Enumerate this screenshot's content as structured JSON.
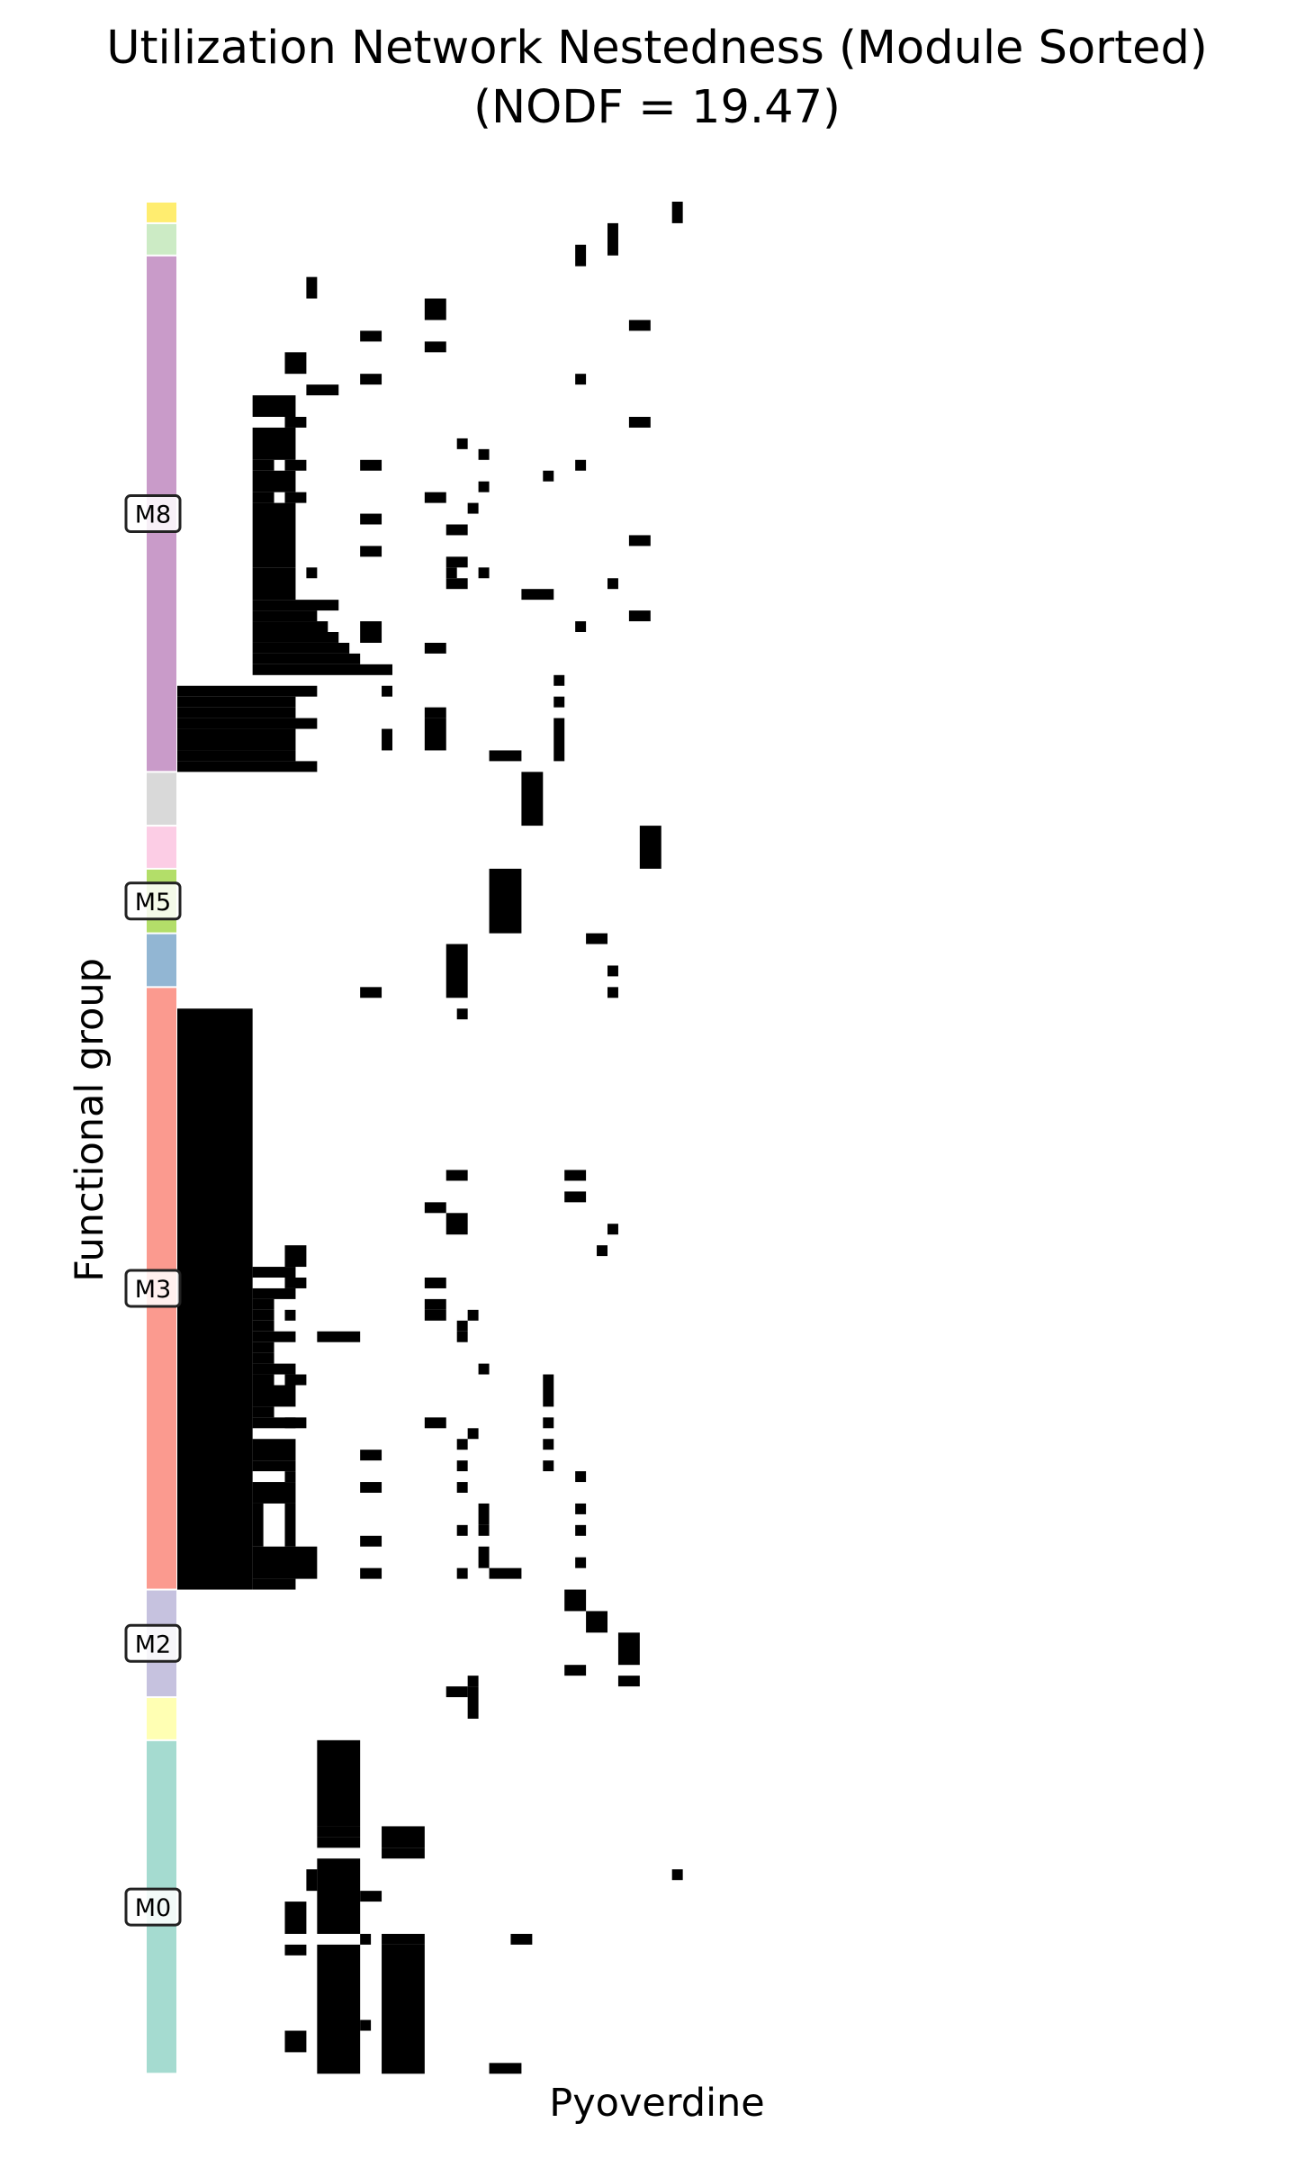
{
  "chart_data": {
    "type": "heatmap",
    "title": "Utilization Network Nestedness (Module Sorted)",
    "subtitle": "(NODF = 19.47)",
    "xlabel": "Pyoverdine",
    "ylabel": "Functional group",
    "grid": false,
    "matrix_units": {
      "columns": 47,
      "rows": 174
    },
    "module_bands": [
      {
        "module": "",
        "start": 0,
        "end": 2,
        "color": "#ffed6f"
      },
      {
        "module": "",
        "start": 2,
        "end": 5,
        "color": "#ccebc5"
      },
      {
        "module": "M8",
        "start": 5,
        "end": 53,
        "color": "#c99bc9"
      },
      {
        "module": "",
        "start": 53,
        "end": 58,
        "color": "#d9d9d9"
      },
      {
        "module": "",
        "start": 58,
        "end": 62,
        "color": "#fccde5"
      },
      {
        "module": "M5",
        "start": 62,
        "end": 68,
        "color": "#b3de69"
      },
      {
        "module": "",
        "start": 68,
        "end": 73,
        "color": "#92b6d3"
      },
      {
        "module": "M3",
        "start": 73,
        "end": 129,
        "color": "#fb9a8f"
      },
      {
        "module": "M2",
        "start": 129,
        "end": 139,
        "color": "#c6c2df"
      },
      {
        "module": "",
        "start": 139,
        "end": 143,
        "color": "#ffffb3"
      },
      {
        "module": "M0",
        "start": 143,
        "end": 174,
        "color": "#a5dbd0"
      }
    ],
    "cells": [
      [
        46,
        0,
        1,
        2
      ],
      [
        40,
        2,
        1,
        3
      ],
      [
        37,
        4,
        1,
        2
      ],
      [
        12,
        7,
        1,
        2
      ],
      [
        23,
        9,
        2,
        2
      ],
      [
        17,
        12,
        2,
        1
      ],
      [
        42,
        11,
        2,
        1
      ],
      [
        23,
        13,
        2,
        1
      ],
      [
        10,
        14,
        2,
        2
      ],
      [
        12,
        17,
        3,
        1
      ],
      [
        17,
        16,
        2,
        1
      ],
      [
        37,
        16,
        1,
        1
      ],
      [
        7,
        18,
        4,
        2
      ],
      [
        10,
        20,
        2,
        1
      ],
      [
        42,
        20,
        2,
        1
      ],
      [
        7,
        21,
        4,
        3
      ],
      [
        26,
        22,
        1,
        1
      ],
      [
        28,
        23,
        1,
        1
      ],
      [
        7,
        24,
        2,
        1
      ],
      [
        10,
        24,
        2,
        1
      ],
      [
        17,
        24,
        2,
        1
      ],
      [
        37,
        24,
        1,
        1
      ],
      [
        7,
        25,
        4,
        2
      ],
      [
        34,
        25,
        1,
        1
      ],
      [
        28,
        26,
        1,
        1
      ],
      [
        7,
        27,
        2,
        1
      ],
      [
        10,
        27,
        2,
        1
      ],
      [
        23,
        27,
        2,
        1
      ],
      [
        27,
        28,
        1,
        1
      ],
      [
        7,
        28,
        4,
        6
      ],
      [
        17,
        29,
        2,
        1
      ],
      [
        25,
        30,
        2,
        1
      ],
      [
        42,
        31,
        2,
        1
      ],
      [
        17,
        32,
        2,
        1
      ],
      [
        25,
        33,
        2,
        1
      ],
      [
        7,
        34,
        4,
        3
      ],
      [
        12,
        34,
        1,
        1
      ],
      [
        25,
        34,
        1,
        1
      ],
      [
        28,
        34,
        1,
        1
      ],
      [
        25,
        35,
        2,
        1
      ],
      [
        40,
        35,
        1,
        1
      ],
      [
        32,
        36,
        3,
        1
      ],
      [
        7,
        37,
        8,
        1
      ],
      [
        42,
        38,
        2,
        1
      ],
      [
        7,
        38,
        6,
        1
      ],
      [
        17,
        39,
        2,
        2
      ],
      [
        37,
        39,
        1,
        1
      ],
      [
        7,
        39,
        7,
        1
      ],
      [
        7,
        40,
        8,
        1
      ],
      [
        7,
        41,
        9,
        1
      ],
      [
        23,
        41,
        2,
        1
      ],
      [
        7,
        42,
        10,
        1
      ],
      [
        7,
        43,
        13,
        1
      ],
      [
        35,
        44,
        1,
        1
      ],
      [
        0,
        45,
        13,
        1
      ],
      [
        19,
        45,
        1,
        1
      ],
      [
        0,
        46,
        11,
        1
      ],
      [
        0,
        47,
        11,
        1
      ],
      [
        35,
        46,
        1,
        1
      ],
      [
        23,
        47,
        2,
        1
      ],
      [
        0,
        48,
        13,
        1
      ],
      [
        23,
        48,
        2,
        3
      ],
      [
        35,
        48,
        1,
        2
      ],
      [
        0,
        49,
        11,
        1
      ],
      [
        19,
        49,
        1,
        1
      ],
      [
        0,
        50,
        11,
        1
      ],
      [
        0,
        51,
        11,
        1
      ],
      [
        19,
        50,
        1,
        1
      ],
      [
        29,
        51,
        3,
        1
      ],
      [
        35,
        50,
        1,
        2
      ],
      [
        0,
        52,
        13,
        1
      ],
      [
        32,
        53,
        2,
        5
      ],
      [
        43,
        58,
        2,
        4
      ],
      [
        29,
        62,
        3,
        6
      ],
      [
        38,
        68,
        2,
        1
      ],
      [
        25,
        69,
        2,
        5
      ],
      [
        40,
        71,
        1,
        1
      ],
      [
        17,
        73,
        2,
        1
      ],
      [
        40,
        73,
        1,
        1
      ],
      [
        26,
        75,
        1,
        1
      ],
      [
        0,
        75,
        7,
        54
      ],
      [
        25,
        90,
        2,
        1
      ],
      [
        36,
        90,
        2,
        1
      ],
      [
        36,
        92,
        2,
        1
      ],
      [
        23,
        93,
        2,
        1
      ],
      [
        25,
        94,
        2,
        2
      ],
      [
        40,
        95,
        1,
        1
      ],
      [
        39,
        97,
        1,
        1
      ],
      [
        10,
        97,
        2,
        2
      ],
      [
        7,
        99,
        4,
        1
      ],
      [
        10,
        100,
        2,
        1
      ],
      [
        23,
        100,
        2,
        1
      ],
      [
        7,
        101,
        4,
        1
      ],
      [
        7,
        102,
        2,
        1
      ],
      [
        7,
        103,
        2,
        1
      ],
      [
        10,
        103,
        1,
        1
      ],
      [
        23,
        102,
        2,
        1
      ],
      [
        23,
        103,
        2,
        1
      ],
      [
        27,
        103,
        1,
        1
      ],
      [
        26,
        104,
        1,
        1
      ],
      [
        7,
        104,
        2,
        1
      ],
      [
        13,
        105,
        4,
        1
      ],
      [
        7,
        105,
        4,
        1
      ],
      [
        26,
        105,
        1,
        1
      ],
      [
        7,
        106,
        2,
        1
      ],
      [
        7,
        107,
        2,
        1
      ],
      [
        7,
        108,
        4,
        1
      ],
      [
        7,
        109,
        2,
        1
      ],
      [
        10,
        109,
        2,
        1
      ],
      [
        28,
        108,
        1,
        1
      ],
      [
        34,
        109,
        1,
        3
      ],
      [
        7,
        110,
        4,
        2
      ],
      [
        7,
        112,
        2,
        1
      ],
      [
        7,
        113,
        4,
        1
      ],
      [
        10,
        113,
        2,
        1
      ],
      [
        23,
        113,
        2,
        1
      ],
      [
        34,
        113,
        1,
        1
      ],
      [
        27,
        114,
        1,
        1
      ],
      [
        26,
        115,
        1,
        1
      ],
      [
        34,
        115,
        1,
        1
      ],
      [
        7,
        115,
        4,
        2
      ],
      [
        17,
        116,
        2,
        1
      ],
      [
        26,
        117,
        1,
        1
      ],
      [
        34,
        117,
        1,
        1
      ],
      [
        7,
        117,
        4,
        1
      ],
      [
        10,
        118,
        1,
        1
      ],
      [
        37,
        118,
        1,
        1
      ],
      [
        17,
        119,
        2,
        1
      ],
      [
        26,
        119,
        1,
        1
      ],
      [
        7,
        119,
        4,
        1
      ],
      [
        10,
        120,
        1,
        1
      ],
      [
        7,
        120,
        3,
        1
      ],
      [
        7,
        121,
        1,
        4
      ],
      [
        10,
        121,
        1,
        4
      ],
      [
        28,
        121,
        1,
        2
      ],
      [
        37,
        121,
        1,
        1
      ],
      [
        26,
        123,
        1,
        1
      ],
      [
        28,
        123,
        1,
        1
      ],
      [
        37,
        123,
        1,
        1
      ],
      [
        17,
        124,
        2,
        1
      ],
      [
        7,
        125,
        6,
        3
      ],
      [
        28,
        125,
        1,
        2
      ],
      [
        37,
        126,
        1,
        1
      ],
      [
        17,
        127,
        2,
        1
      ],
      [
        26,
        127,
        1,
        1
      ],
      [
        29,
        127,
        3,
        1
      ],
      [
        7,
        128,
        4,
        1
      ],
      [
        36,
        129,
        2,
        2
      ],
      [
        38,
        131,
        2,
        2
      ],
      [
        41,
        133,
        2,
        3
      ],
      [
        36,
        136,
        2,
        1
      ],
      [
        41,
        137,
        2,
        1
      ],
      [
        27,
        137,
        1,
        1
      ],
      [
        25,
        138,
        2,
        1
      ],
      [
        27,
        138,
        1,
        3
      ],
      [
        13,
        143,
        4,
        8
      ],
      [
        13,
        151,
        4,
        1
      ],
      [
        19,
        151,
        4,
        2
      ],
      [
        13,
        152,
        4,
        1
      ],
      [
        19,
        153,
        4,
        1
      ],
      [
        13,
        154,
        4,
        6
      ],
      [
        12,
        155,
        1,
        2
      ],
      [
        46,
        155,
        1,
        1
      ],
      [
        17,
        157,
        2,
        1
      ],
      [
        10,
        158,
        2,
        3
      ],
      [
        13,
        160,
        4,
        1
      ],
      [
        19,
        161,
        4,
        1
      ],
      [
        31,
        161,
        2,
        1
      ],
      [
        10,
        162,
        2,
        1
      ],
      [
        13,
        162,
        4,
        12
      ],
      [
        17,
        161,
        1,
        1
      ],
      [
        19,
        162,
        4,
        12
      ],
      [
        17,
        169,
        1,
        1
      ],
      [
        10,
        170,
        2,
        2
      ],
      [
        29,
        173,
        3,
        1
      ]
    ]
  }
}
